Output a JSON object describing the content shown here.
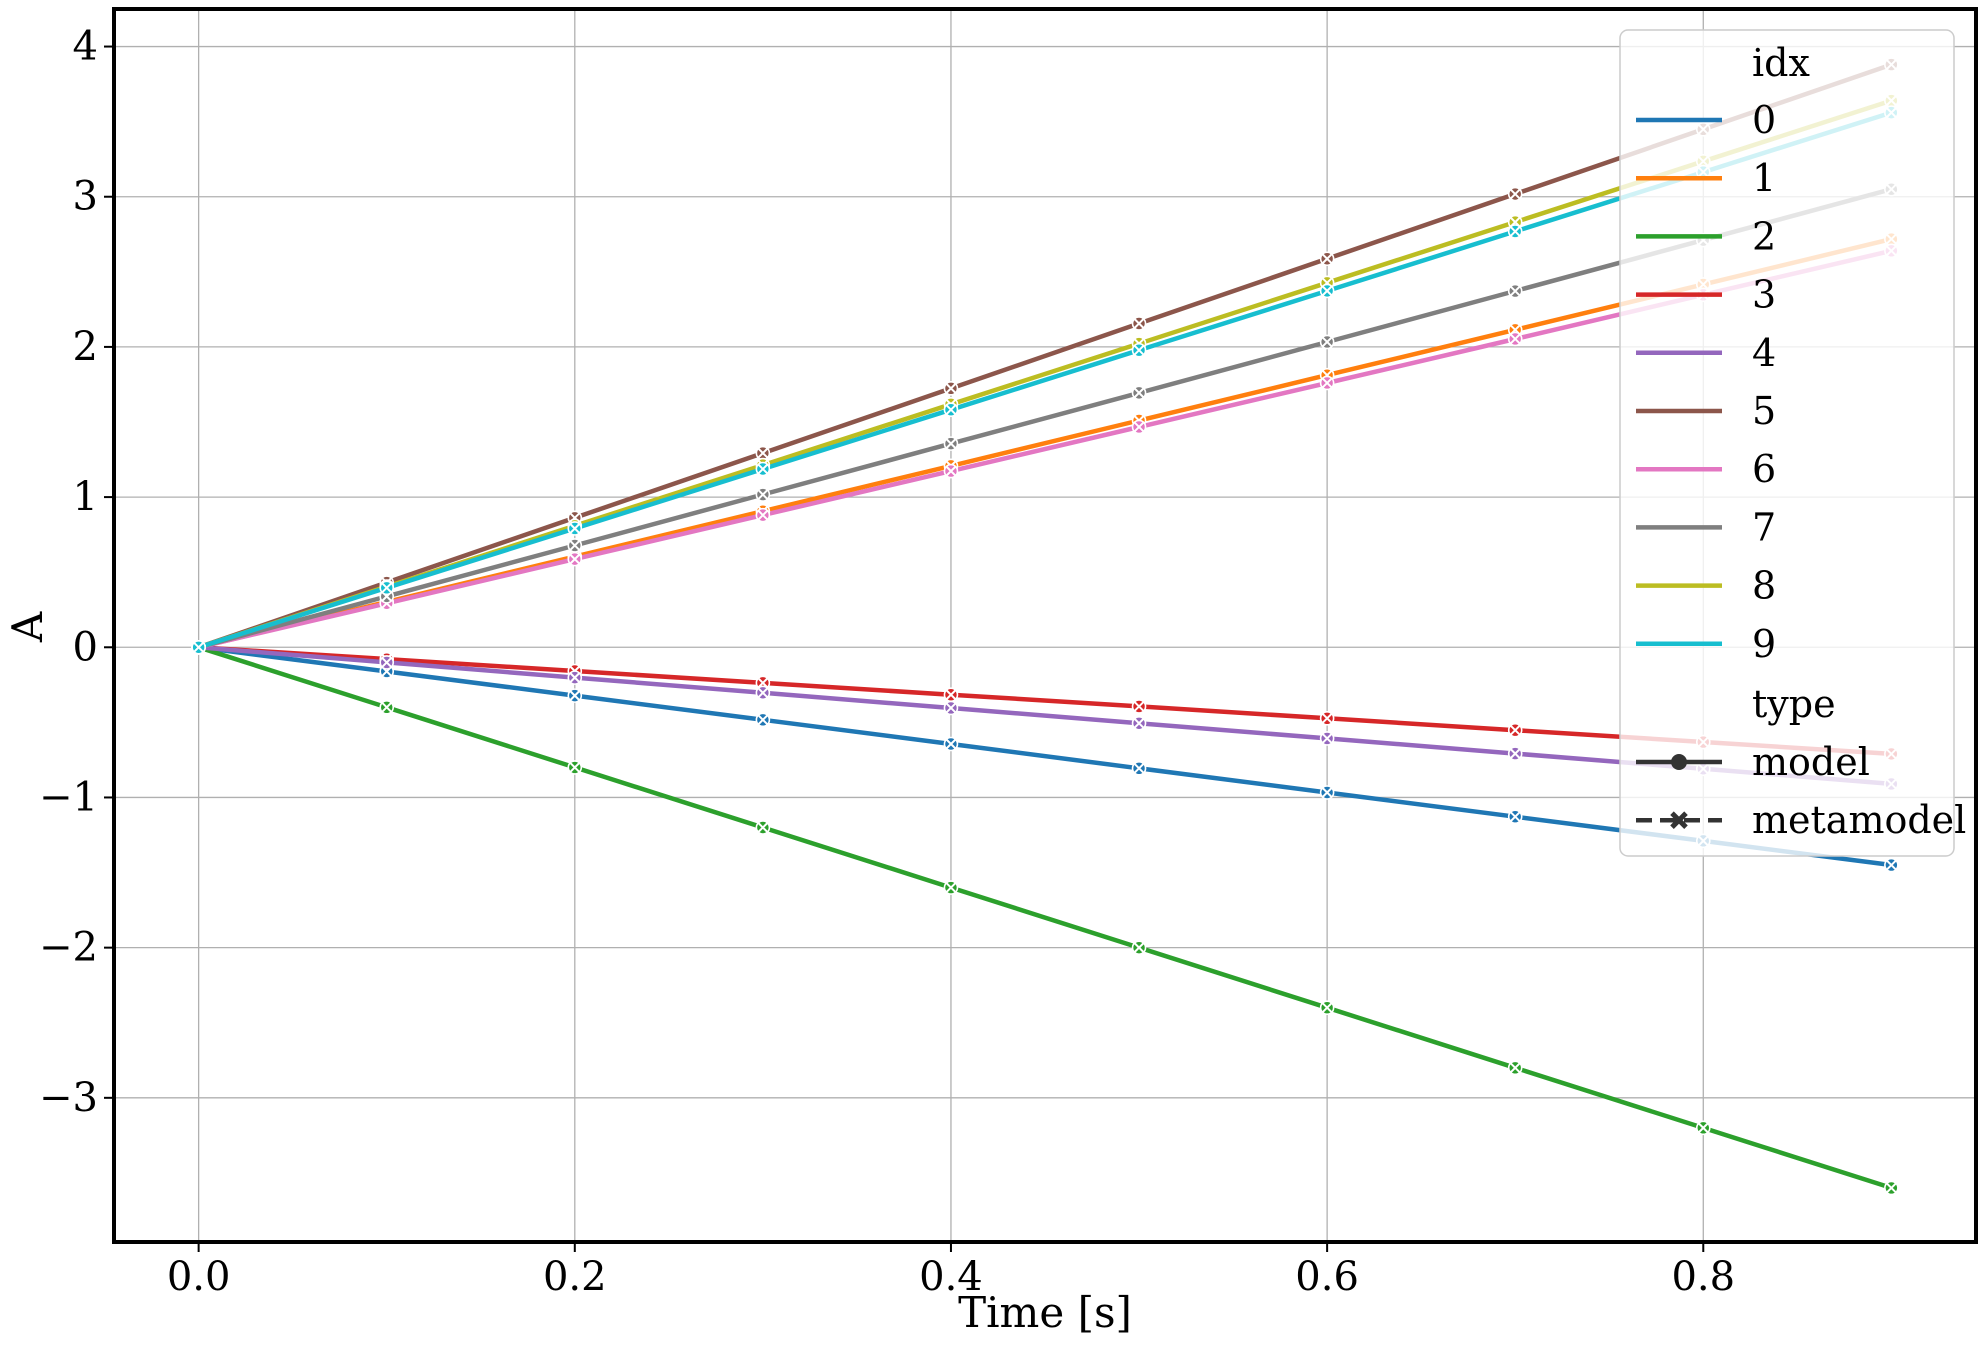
{
  "chart_data": {
    "type": "line",
    "xlabel": "Time [s]",
    "ylabel": "A",
    "xlim": [
      -0.045,
      0.945
    ],
    "ylim": [
      -3.96,
      4.25
    ],
    "xticks": [
      0.0,
      0.2,
      0.4,
      0.6,
      0.8
    ],
    "xtick_labels": [
      "0.0",
      "0.2",
      "0.4",
      "0.6",
      "0.8"
    ],
    "yticks": [
      -3,
      -2,
      -1,
      0,
      1,
      2,
      3,
      4
    ],
    "ytick_labels": [
      "−3",
      "−2",
      "−1",
      "0",
      "1",
      "2",
      "3",
      "4"
    ],
    "grid": true,
    "legend_position": "upper right",
    "x": [
      0.0,
      0.1,
      0.2,
      0.3,
      0.4,
      0.5,
      0.6,
      0.7,
      0.8,
      0.9
    ],
    "series": [
      {
        "name": "0",
        "color": "#1f77b4",
        "values": [
          0,
          -0.161,
          -0.322,
          -0.483,
          -0.644,
          -0.806,
          -0.967,
          -1.128,
          -1.289,
          -1.45
        ]
      },
      {
        "name": "1",
        "color": "#ff7f0e",
        "values": [
          0,
          0.302,
          0.604,
          0.906,
          1.208,
          1.51,
          1.812,
          2.114,
          2.416,
          2.718
        ]
      },
      {
        "name": "2",
        "color": "#2ca02c",
        "values": [
          0,
          -0.4,
          -0.8,
          -1.2,
          -1.6,
          -2.0,
          -2.4,
          -2.8,
          -3.2,
          -3.6
        ]
      },
      {
        "name": "3",
        "color": "#d62728",
        "values": [
          0,
          -0.079,
          -0.158,
          -0.237,
          -0.316,
          -0.394,
          -0.473,
          -0.552,
          -0.631,
          -0.71
        ]
      },
      {
        "name": "4",
        "color": "#9467bd",
        "values": [
          0,
          -0.101,
          -0.202,
          -0.303,
          -0.404,
          -0.506,
          -0.607,
          -0.708,
          -0.809,
          -0.91
        ]
      },
      {
        "name": "5",
        "color": "#8c564b",
        "values": [
          0,
          0.431,
          0.862,
          1.293,
          1.724,
          2.156,
          2.587,
          3.018,
          3.449,
          3.88
        ]
      },
      {
        "name": "6",
        "color": "#e377c2",
        "values": [
          0,
          0.293,
          0.587,
          0.88,
          1.173,
          1.467,
          1.76,
          2.053,
          2.347,
          2.64
        ]
      },
      {
        "name": "7",
        "color": "#7f7f7f",
        "values": [
          0,
          0.339,
          0.678,
          1.017,
          1.356,
          1.694,
          2.033,
          2.372,
          2.711,
          3.05
        ]
      },
      {
        "name": "8",
        "color": "#bcbd22",
        "values": [
          0,
          0.404,
          0.809,
          1.213,
          1.618,
          2.022,
          2.427,
          2.831,
          3.236,
          3.64
        ]
      },
      {
        "name": "9",
        "color": "#17becf",
        "values": [
          0,
          0.396,
          0.791,
          1.187,
          1.582,
          1.978,
          2.373,
          2.769,
          3.164,
          3.56
        ]
      }
    ],
    "legend": {
      "hue_title": "idx",
      "style_title": "type",
      "styles": [
        {
          "name": "model",
          "marker": "circle",
          "dash": "solid"
        },
        {
          "name": "metamodel",
          "marker": "x",
          "dash": "dashed"
        }
      ]
    }
  }
}
